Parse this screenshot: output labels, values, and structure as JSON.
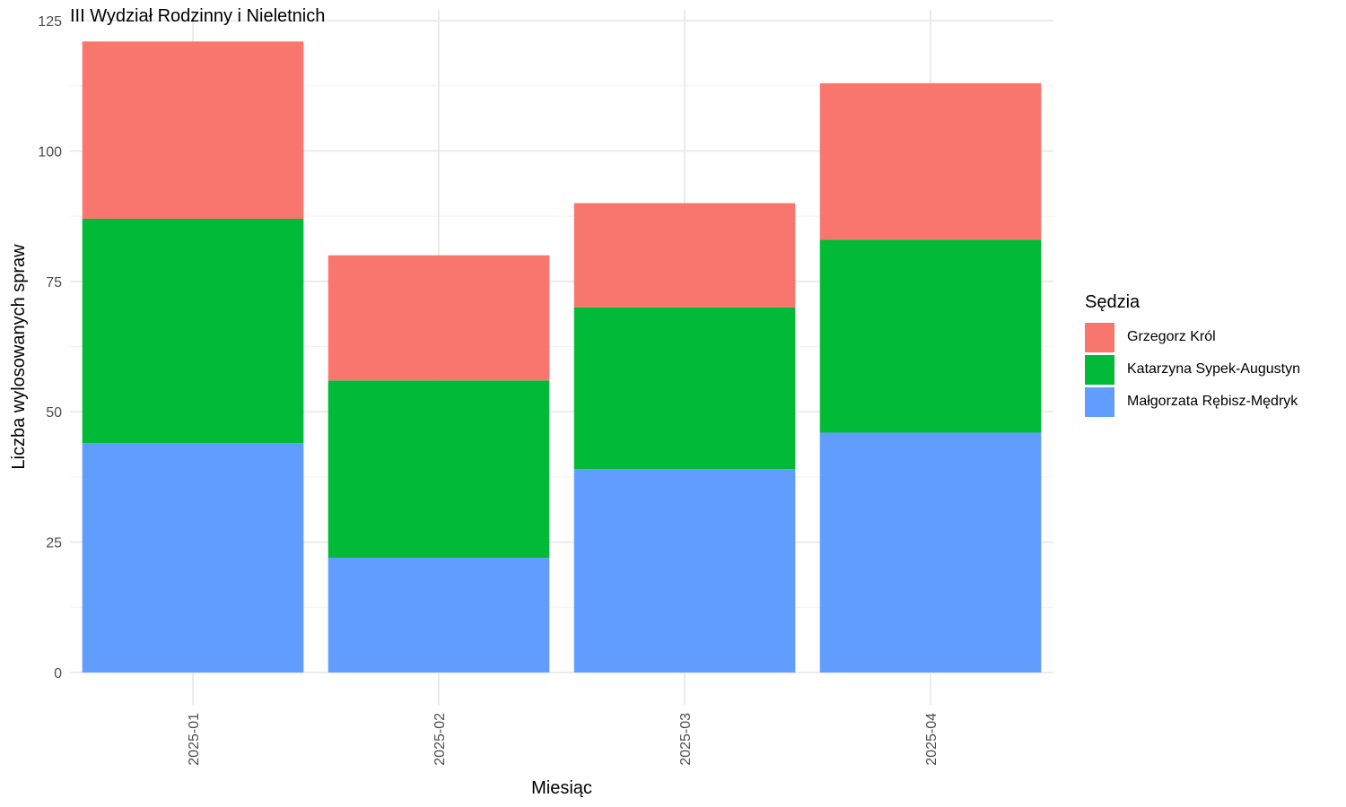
{
  "chart_data": {
    "type": "bar",
    "stacked": true,
    "title": "III Wydział Rodzinny i Nieletnich",
    "xlabel": "Miesiąc",
    "ylabel": "Liczba wylosowanych spraw",
    "categories": [
      "2025-01",
      "2025-02",
      "2025-03",
      "2025-04"
    ],
    "ylim": [
      0,
      125
    ],
    "yticks": [
      0,
      25,
      50,
      75,
      100,
      125
    ],
    "grid": true,
    "legend": {
      "title": "Sędzia",
      "position": "right"
    },
    "series": [
      {
        "name": "Małgorzata Rębisz-Mędryk",
        "color": "#619CFF",
        "values": [
          44,
          22,
          39,
          46
        ]
      },
      {
        "name": "Katarzyna Sypek-Augustyn",
        "color": "#00BA38",
        "values": [
          43,
          34,
          31,
          37
        ]
      },
      {
        "name": "Grzegorz Król",
        "color": "#F8766D",
        "values": [
          34,
          24,
          20,
          30
        ]
      }
    ],
    "legend_order": [
      "Grzegorz Król",
      "Katarzyna Sypek-Augustyn",
      "Małgorzata Rębisz-Mędryk"
    ]
  }
}
